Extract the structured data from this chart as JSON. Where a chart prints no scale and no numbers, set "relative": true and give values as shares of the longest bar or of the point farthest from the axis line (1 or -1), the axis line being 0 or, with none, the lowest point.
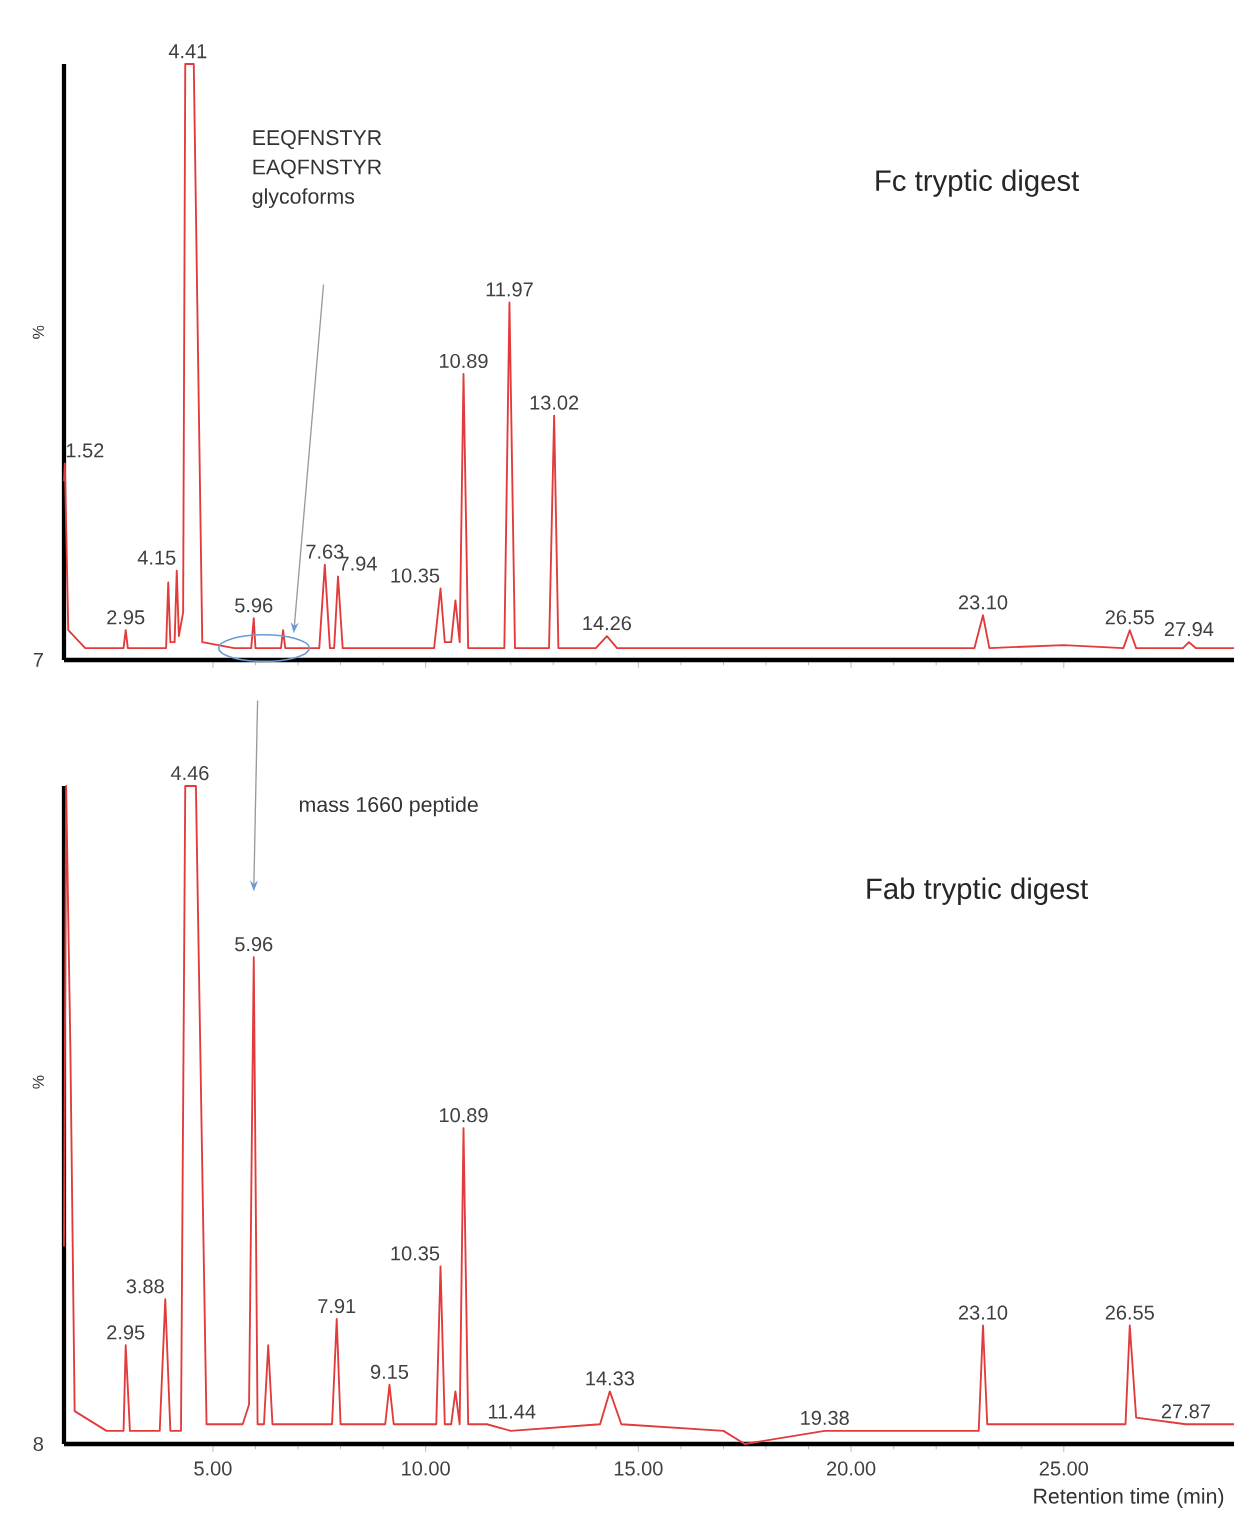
{
  "chart_data": [
    {
      "type": "line",
      "title": "Fc tryptic digest",
      "ylabel": "%",
      "relative": true,
      "tick_labels": false,
      "line_style": "solid",
      "xlim": [
        1.5,
        29.0
      ],
      "xticks": [
        {
          "value": 5,
          "label": null
        },
        {
          "value": 10,
          "label": null
        },
        {
          "value": 15,
          "label": null
        },
        {
          "value": 20,
          "label": null
        },
        {
          "value": 25,
          "label": null
        }
      ],
      "series": [
        {
          "color": "#e23b3b",
          "x": [
            1.5,
            1.52,
            1.6,
            2.0,
            2.9,
            2.95,
            3.0,
            3.9,
            3.95,
            4.0,
            4.1,
            4.15,
            4.2,
            4.3,
            4.35,
            4.55,
            4.75,
            5.5,
            5.9,
            5.96,
            6.0,
            6.6,
            6.65,
            6.7,
            7.5,
            7.63,
            7.75,
            7.85,
            7.94,
            8.05,
            9.0,
            10.2,
            10.35,
            10.45,
            10.6,
            10.7,
            10.8,
            10.89,
            11.0,
            11.85,
            11.97,
            12.1,
            12.9,
            13.02,
            13.12,
            14.0,
            14.26,
            14.5,
            17.0,
            20.0,
            22.9,
            23.1,
            23.25,
            25.0,
            26.4,
            26.55,
            26.7,
            27.8,
            27.94,
            28.1,
            29.0
          ],
          "values": [
            0.3,
            0.33,
            0.05,
            0.02,
            0.02,
            0.05,
            0.02,
            0.02,
            0.13,
            0.03,
            0.03,
            0.15,
            0.04,
            0.08,
            1.0,
            1.0,
            0.03,
            0.02,
            0.02,
            0.07,
            0.02,
            0.02,
            0.05,
            0.02,
            0.02,
            0.16,
            0.02,
            0.02,
            0.14,
            0.02,
            0.02,
            0.02,
            0.12,
            0.03,
            0.03,
            0.1,
            0.03,
            0.48,
            0.02,
            0.02,
            0.6,
            0.02,
            0.02,
            0.41,
            0.02,
            0.02,
            0.04,
            0.02,
            0.02,
            0.02,
            0.02,
            0.075,
            0.02,
            0.025,
            0.02,
            0.05,
            0.02,
            0.02,
            0.03,
            0.02,
            0.02
          ]
        }
      ],
      "annotations": [
        {
          "text": "1.52",
          "x": 1.52,
          "y": 0.33
        },
        {
          "text": "2.95",
          "x": 2.95,
          "y": 0.05
        },
        {
          "text": "4.15",
          "x": 4.15,
          "y": 0.15
        },
        {
          "text": "4.41",
          "x": 4.41,
          "y": 1.0
        },
        {
          "text": "5.96",
          "x": 5.96,
          "y": 0.07
        },
        {
          "text": "7.63",
          "x": 7.63,
          "y": 0.16
        },
        {
          "text": "7.94",
          "x": 7.94,
          "y": 0.14
        },
        {
          "text": "10.35",
          "x": 10.35,
          "y": 0.12
        },
        {
          "text": "10.89",
          "x": 10.89,
          "y": 0.48
        },
        {
          "text": "11.97",
          "x": 11.97,
          "y": 0.6
        },
        {
          "text": "13.02",
          "x": 13.02,
          "y": 0.41
        },
        {
          "text": "14.26",
          "x": 14.26,
          "y": 0.04
        },
        {
          "text": "23.10",
          "x": 23.1,
          "y": 0.075
        },
        {
          "text": "26.55",
          "x": 26.55,
          "y": 0.05
        },
        {
          "text": "27.94",
          "x": 27.94,
          "y": 0.03
        },
        "7",
        "EEQFNSTYR",
        "EAQFNSTYR",
        "glycoforms"
      ]
    },
    {
      "type": "line",
      "title": "Fab tryptic digest",
      "xlabel": "Retention time (min)",
      "ylabel": "%",
      "relative": true,
      "tick_labels": "x",
      "line_style": "solid",
      "xlim": [
        1.5,
        29.0
      ],
      "xticks": [
        {
          "value": 5,
          "label": "5.00"
        },
        {
          "value": 10,
          "label": "10.00"
        },
        {
          "value": 15,
          "label": "15.00"
        },
        {
          "value": 20,
          "label": "20.00"
        },
        {
          "value": 25,
          "label": "25.00"
        }
      ],
      "series": [
        {
          "color": "#e23b3b",
          "x": [
            1.5,
            1.55,
            1.65,
            1.75,
            2.5,
            2.9,
            2.95,
            3.05,
            3.75,
            3.88,
            4.0,
            4.25,
            4.35,
            4.6,
            4.85,
            5.7,
            5.85,
            5.96,
            6.05,
            6.2,
            6.3,
            6.4,
            7.8,
            7.91,
            8.0,
            9.05,
            9.15,
            9.25,
            10.25,
            10.35,
            10.45,
            10.6,
            10.7,
            10.8,
            10.89,
            11.0,
            11.44,
            12.0,
            14.1,
            14.33,
            14.6,
            17.0,
            17.5,
            19.38,
            20.0,
            23.0,
            23.1,
            23.2,
            26.45,
            26.55,
            26.7,
            27.87,
            29.0
          ],
          "values": [
            0.3,
            1.0,
            0.6,
            0.05,
            0.02,
            0.02,
            0.15,
            0.02,
            0.02,
            0.22,
            0.02,
            0.02,
            1.0,
            1.0,
            0.03,
            0.03,
            0.06,
            0.74,
            0.03,
            0.03,
            0.15,
            0.03,
            0.03,
            0.19,
            0.03,
            0.03,
            0.09,
            0.03,
            0.03,
            0.27,
            0.03,
            0.03,
            0.08,
            0.03,
            0.48,
            0.03,
            0.03,
            0.02,
            0.03,
            0.08,
            0.03,
            0.02,
            0.0,
            0.02,
            0.02,
            0.02,
            0.18,
            0.03,
            0.03,
            0.18,
            0.04,
            0.03,
            0.03
          ]
        }
      ],
      "annotations": [
        {
          "text": "2.95",
          "x": 2.95,
          "y": 0.15
        },
        {
          "text": "3.88",
          "x": 3.88,
          "y": 0.22
        },
        {
          "text": "4.46",
          "x": 4.46,
          "y": 1.0
        },
        {
          "text": "5.96",
          "x": 5.96,
          "y": 0.74
        },
        {
          "text": "7.91",
          "x": 7.91,
          "y": 0.19
        },
        {
          "text": "9.15",
          "x": 9.15,
          "y": 0.09
        },
        {
          "text": "10.35",
          "x": 10.35,
          "y": 0.27
        },
        {
          "text": "10.89",
          "x": 10.89,
          "y": 0.48
        },
        {
          "text": "11.44",
          "x": 11.44,
          "y": 0.03
        },
        {
          "text": "14.33",
          "x": 14.33,
          "y": 0.08
        },
        {
          "text": "19.38",
          "x": 19.38,
          "y": 0.02
        },
        {
          "text": "23.10",
          "x": 23.1,
          "y": 0.18
        },
        {
          "text": "26.55",
          "x": 26.55,
          "y": 0.18
        },
        {
          "text": "27.87",
          "x": 27.87,
          "y": 0.03
        },
        "8",
        "mass 1660 peptide"
      ]
    }
  ]
}
